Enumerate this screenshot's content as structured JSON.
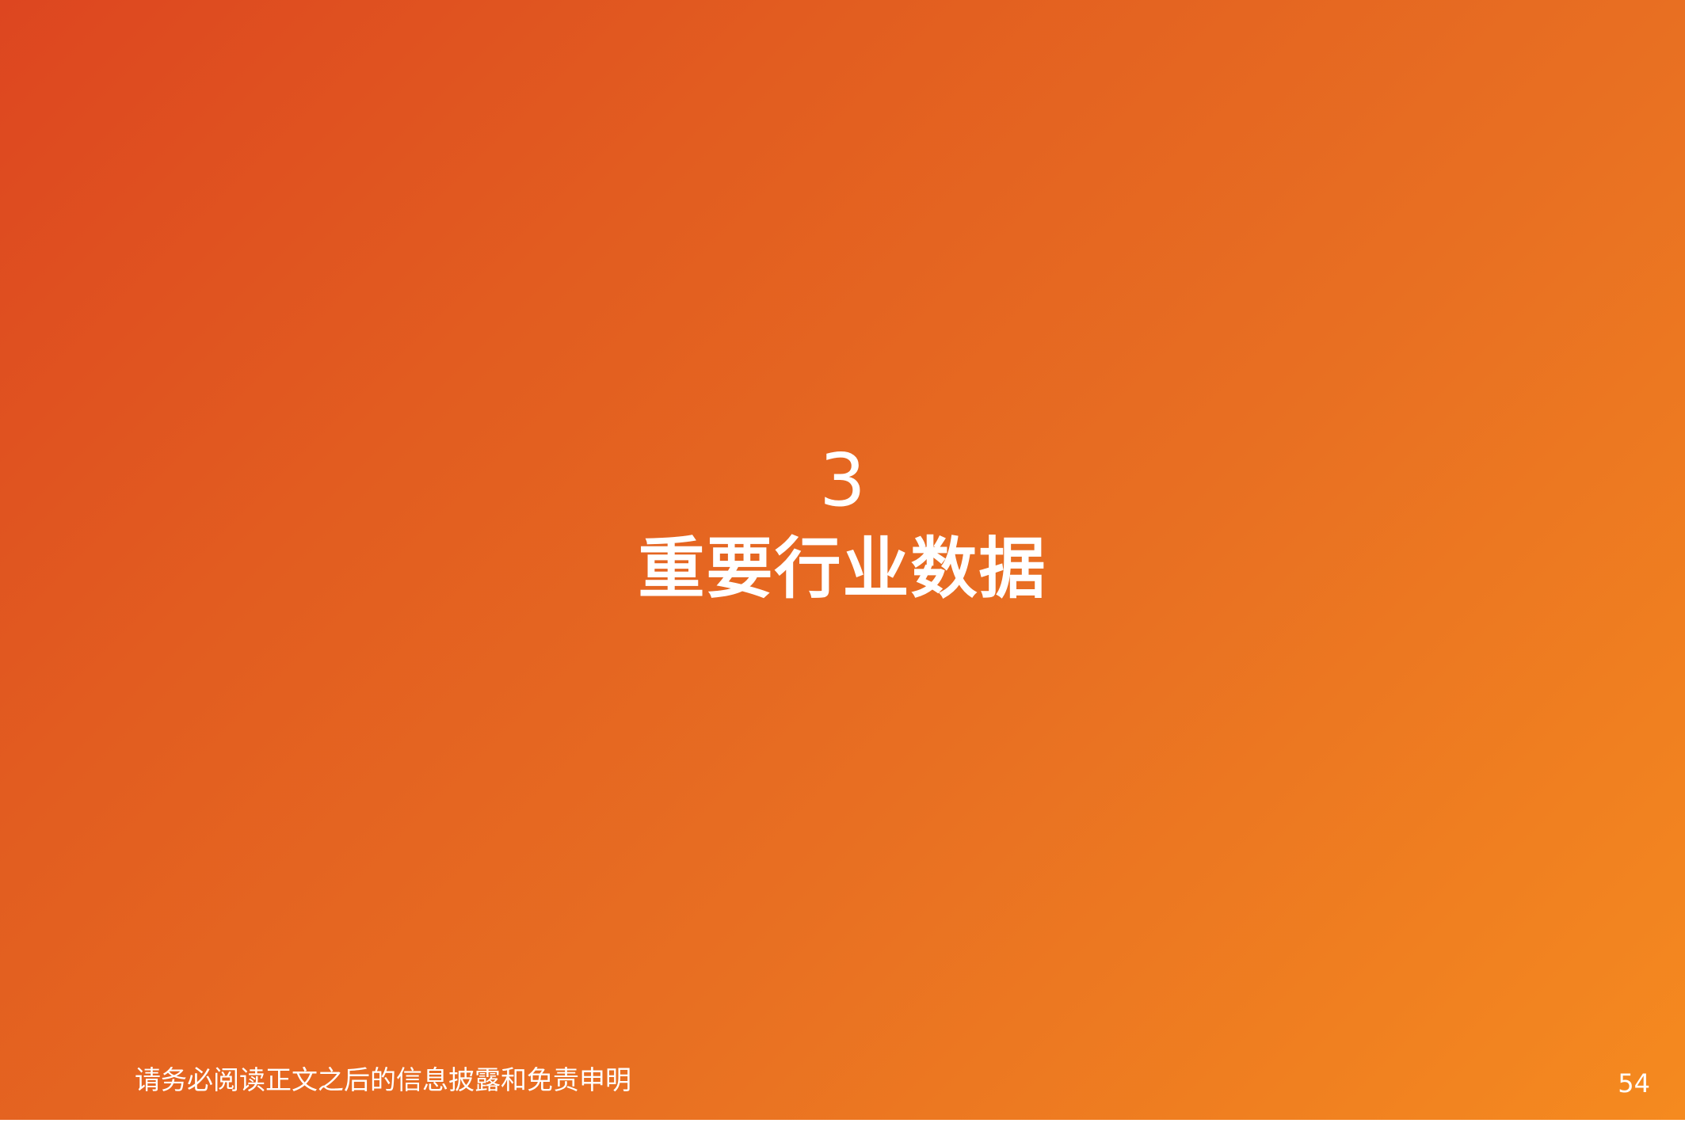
{
  "section": {
    "number": "3",
    "title": "重要行业数据"
  },
  "footer": {
    "disclaimer": "请务必阅读正文之后的信息披露和免责申明",
    "page_number": "54"
  },
  "colors": {
    "gradient_start": "#dd4620",
    "gradient_end": "#f58a1f",
    "text": "#ffffff"
  }
}
